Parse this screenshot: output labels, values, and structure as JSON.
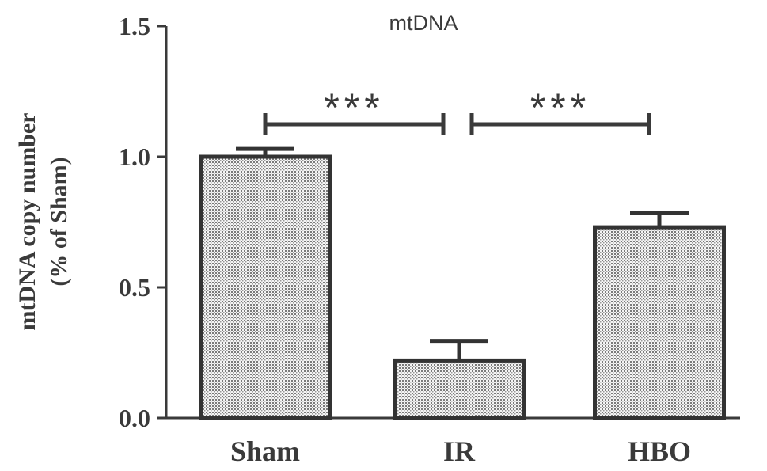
{
  "chart_data": {
    "type": "bar",
    "title": "mtDNA",
    "ylabel_line1": "mtDNA copy number",
    "ylabel_line2": "(% of  Sham)",
    "xlabel": "",
    "categories": [
      "Sham",
      "IR",
      "HBO"
    ],
    "values": [
      1.0,
      0.22,
      0.73
    ],
    "errors": [
      0.03,
      0.075,
      0.055
    ],
    "ylim": [
      0,
      1.5
    ],
    "yticks": [
      0.0,
      0.5,
      1.0,
      1.5
    ],
    "ytick_labels": [
      "0.0",
      "0.5",
      "1.0",
      "1.5"
    ],
    "grid": false,
    "bar_fill": "dotted-pattern",
    "significance": [
      {
        "from": "Sham",
        "to": "IR",
        "label": "***"
      },
      {
        "from": "IR",
        "to": "HBO",
        "label": "***"
      }
    ],
    "colors": {
      "axis": "#3a3a3a",
      "bar_edge": "#333333",
      "dot": "#6a6a6a"
    }
  }
}
